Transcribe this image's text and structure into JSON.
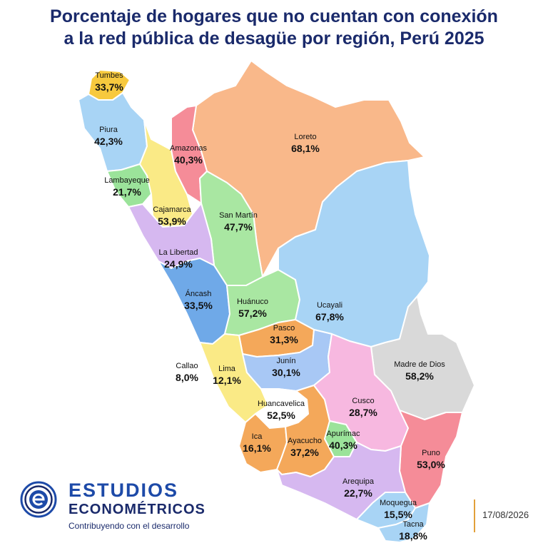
{
  "title": {
    "line1": "Porcentaje de hogares que no cuentan con conexión",
    "line2": "a la red pública de desagüe por región, Perú 2025"
  },
  "regions": {
    "tumbes": {
      "name": "Tumbes",
      "value": "33,7%",
      "color": "#f7c93e"
    },
    "piura": {
      "name": "Piura",
      "value": "42,3%",
      "color": "#a8d4f5"
    },
    "lambayeque": {
      "name": "Lambayeque",
      "value": "21,7%",
      "color": "#9be39a"
    },
    "cajamarca": {
      "name": "Cajamarca",
      "value": "53,9%",
      "color": "#faea86"
    },
    "amazonas": {
      "name": "Amazonas",
      "value": "40,3%",
      "color": "#f58c98"
    },
    "loreto": {
      "name": "Loreto",
      "value": "68,1%",
      "color": "#f9b88a"
    },
    "san_martin": {
      "name": "San Martín",
      "value": "47,7%",
      "color": "#a9e7a2"
    },
    "la_libertad": {
      "name": "La Libertad",
      "value": "24,9%",
      "color": "#d6b8f0"
    },
    "ancash": {
      "name": "Áncash",
      "value": "33,5%",
      "color": "#6fa9e8"
    },
    "huanuco": {
      "name": "Huánuco",
      "value": "57,2%",
      "color": "#a9e7a2"
    },
    "ucayali": {
      "name": "Ucayali",
      "value": "67,8%",
      "color": "#a8d4f5"
    },
    "pasco": {
      "name": "Pasco",
      "value": "31,3%",
      "color": "#f4a85a"
    },
    "callao": {
      "name": "Callao",
      "value": "8,0%",
      "color": "#ffffff"
    },
    "lima": {
      "name": "Lima",
      "value": "12,1%",
      "color": "#faea86"
    },
    "junin": {
      "name": "Junín",
      "value": "30,1%",
      "color": "#a8c8f5"
    },
    "madre_de_dios": {
      "name": "Madre de Dios",
      "value": "58,2%",
      "color": "#d9d9d9"
    },
    "huancavelica": {
      "name": "Huancavelica",
      "value": "52,5%",
      "color": "#ffffff"
    },
    "cusco": {
      "name": "Cusco",
      "value": "28,7%",
      "color": "#f7b8e0"
    },
    "ica": {
      "name": "Ica",
      "value": "16,1%",
      "color": "#f4a85a"
    },
    "ayacucho": {
      "name": "Ayacucho",
      "value": "37,2%",
      "color": "#f4a85a"
    },
    "apurimac": {
      "name": "Apurímac",
      "value": "40,3%",
      "color": "#9be39a"
    },
    "puno": {
      "name": "Puno",
      "value": "53,0%",
      "color": "#f58c98"
    },
    "arequipa": {
      "name": "Arequipa",
      "value": "22,7%",
      "color": "#d6b8f0"
    },
    "moquegua": {
      "name": "Moquegua",
      "value": "15,5%",
      "color": "#a8d4f5"
    },
    "tacna": {
      "name": "Tacna",
      "value": "18,8%",
      "color": "#a8d4f5"
    }
  },
  "logo": {
    "line1": "ESTUDIOS",
    "line2": "ECONOMÉTRICOS",
    "tagline": "Contribuyendo con el desarrollo",
    "icon": "e-letter-logo"
  },
  "date": "17/08/2026"
}
